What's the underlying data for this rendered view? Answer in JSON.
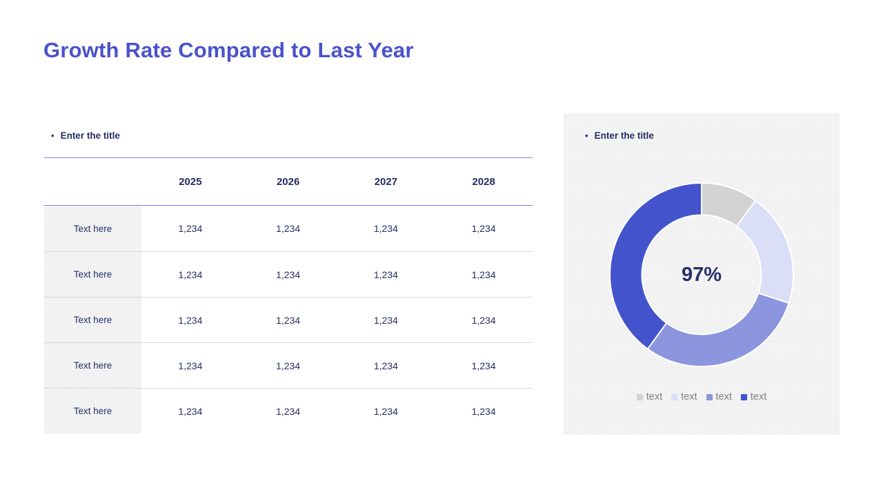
{
  "slide": {
    "title": "Growth Rate Compared to Last Year"
  },
  "colors": {
    "accent": "#4a52cc",
    "navy_text": "#232d64",
    "header_rule_blue": "#7b83d8",
    "row_separator": "#d8d8d8",
    "panel_background": "#f1f1f2",
    "label_cell_background": "#f0f0f1",
    "legend_text": "#7f7f7f"
  },
  "table_section": {
    "bullet": "•",
    "title": "Enter the title",
    "columns": [
      "2025",
      "2026",
      "2027",
      "2028"
    ],
    "rows": [
      {
        "label": "Text here",
        "values": [
          "1,234",
          "1,234",
          "1,234",
          "1,234"
        ]
      },
      {
        "label": "Text here",
        "values": [
          "1,234",
          "1,234",
          "1,234",
          "1,234"
        ]
      },
      {
        "label": "Text here",
        "values": [
          "1,234",
          "1,234",
          "1,234",
          "1,234"
        ]
      },
      {
        "label": "Text here",
        "values": [
          "1,234",
          "1,234",
          "1,234",
          "1,234"
        ]
      },
      {
        "label": "Text here",
        "values": [
          "1,234",
          "1,234",
          "1,234",
          "1,234"
        ]
      }
    ]
  },
  "chart_section": {
    "bullet": "•",
    "title": "Enter the title"
  },
  "chart_data": {
    "type": "pie",
    "donut": true,
    "center_label": "97%",
    "start_angle_deg": 0,
    "direction": "clockwise",
    "hole_ratio": 0.65,
    "legend_position": "bottom",
    "series": [
      {
        "name": "text",
        "value": 10,
        "color": "#d3d3d4"
      },
      {
        "name": "text",
        "value": 20,
        "color": "#dadef7"
      },
      {
        "name": "text",
        "value": 30,
        "color": "#8c96de"
      },
      {
        "name": "text",
        "value": 40,
        "color": "#4353cb"
      }
    ]
  }
}
